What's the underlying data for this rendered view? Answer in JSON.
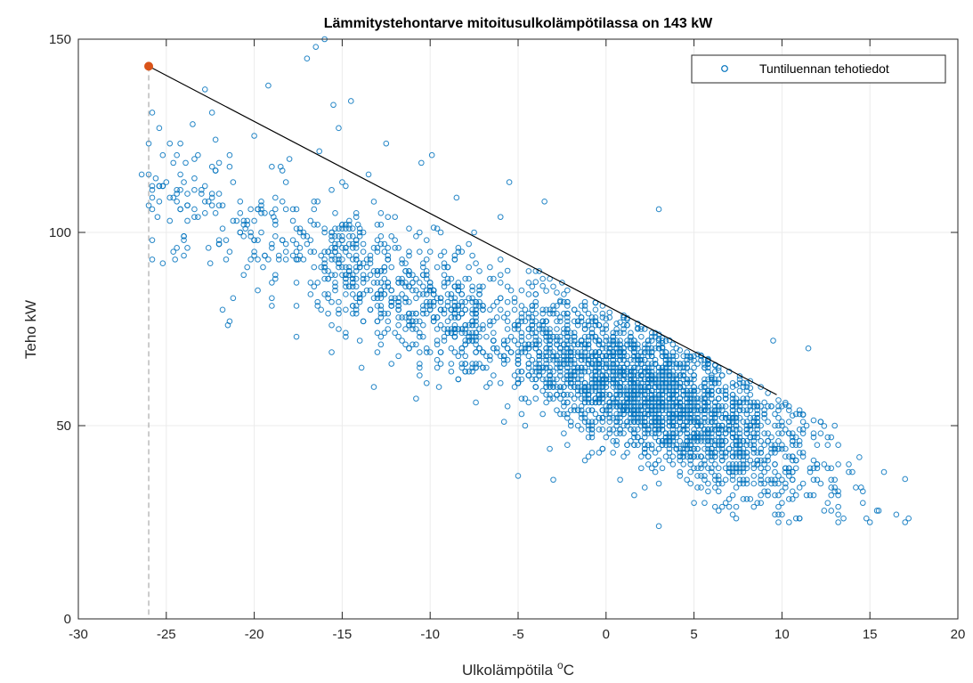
{
  "chart_data": {
    "type": "scatter",
    "title": "Lämmitystehontarve mitoitusulkolämpötilassa on 143 kW",
    "xlabel": "Ulkolämpötila",
    "xlabel_sup": "o",
    "xlabel_unit": "C",
    "ylabel": "Teho kW",
    "xlim": [
      -30,
      20
    ],
    "ylim": [
      0,
      150
    ],
    "xticks": [
      -30,
      -25,
      -20,
      -15,
      -10,
      -5,
      0,
      5,
      10,
      15,
      20
    ],
    "yticks": [
      0,
      50,
      100,
      150
    ],
    "grid": true,
    "legend_position": "top-right",
    "series": [
      {
        "name": "Tuntiluennan tehotiedot",
        "marker": "open-circle",
        "color": "#0072BD",
        "model": {
          "slope": -1.92,
          "intercept": 62.5,
          "noise_sd": 8.5
        },
        "points": [
          [
            -26.4,
            115
          ],
          [
            -25.8,
            93
          ],
          [
            -25.5,
            104
          ],
          [
            -24.8,
            123
          ],
          [
            -24.5,
            93
          ],
          [
            -23.9,
            118
          ],
          [
            -23.5,
            128
          ],
          [
            -23.2,
            120
          ],
          [
            -22.8,
            137
          ],
          [
            -22.5,
            92
          ],
          [
            -22.4,
            131
          ],
          [
            -22.0,
            97
          ],
          [
            -21.8,
            80
          ],
          [
            -21.5,
            76
          ],
          [
            -21.4,
            77
          ],
          [
            -21.2,
            83
          ],
          [
            -20.8,
            108
          ],
          [
            -20.5,
            101
          ],
          [
            -20.0,
            125
          ],
          [
            -19.8,
            98
          ],
          [
            -19.5,
            91
          ],
          [
            -19.2,
            138
          ],
          [
            -18.9,
            104
          ],
          [
            -18.5,
            117
          ],
          [
            -18.2,
            113
          ],
          [
            -17.8,
            106
          ],
          [
            -17.5,
            93
          ],
          [
            -17.0,
            145
          ],
          [
            -16.5,
            148
          ],
          [
            -16.3,
            121
          ],
          [
            -16.0,
            150
          ],
          [
            -15.5,
            133
          ],
          [
            -15.2,
            127
          ],
          [
            -14.8,
            112
          ],
          [
            -14.5,
            134
          ],
          [
            -14.1,
            102
          ],
          [
            -13.9,
            65
          ],
          [
            -13.5,
            115
          ],
          [
            -12.5,
            123
          ],
          [
            -11.2,
            101
          ],
          [
            -10.5,
            118
          ],
          [
            -9.9,
            120
          ],
          [
            -9.5,
            60
          ],
          [
            -8.5,
            109
          ],
          [
            -7.5,
            100
          ],
          [
            -6.0,
            104
          ],
          [
            -5.5,
            113
          ],
          [
            -4.0,
            57
          ],
          [
            -3.5,
            108
          ],
          [
            -2.5,
            87
          ],
          [
            3.0,
            106
          ],
          [
            3.0,
            24
          ],
          [
            4.5,
            45
          ],
          [
            6.0,
            52
          ],
          [
            9.5,
            72
          ],
          [
            11.5,
            70
          ],
          [
            13.0,
            50
          ],
          [
            14.5,
            34
          ],
          [
            15.5,
            28
          ],
          [
            16.5,
            27
          ],
          [
            17.2,
            26
          ],
          [
            17.0,
            25
          ],
          [
            13.5,
            26
          ]
        ]
      }
    ],
    "design_point": {
      "x": -26,
      "y": 143,
      "color": "#D95319",
      "dashed_guide": true
    },
    "fit_line": {
      "x": [
        -26,
        9.7
      ],
      "y": [
        143,
        58
      ],
      "color": "#000000"
    }
  }
}
